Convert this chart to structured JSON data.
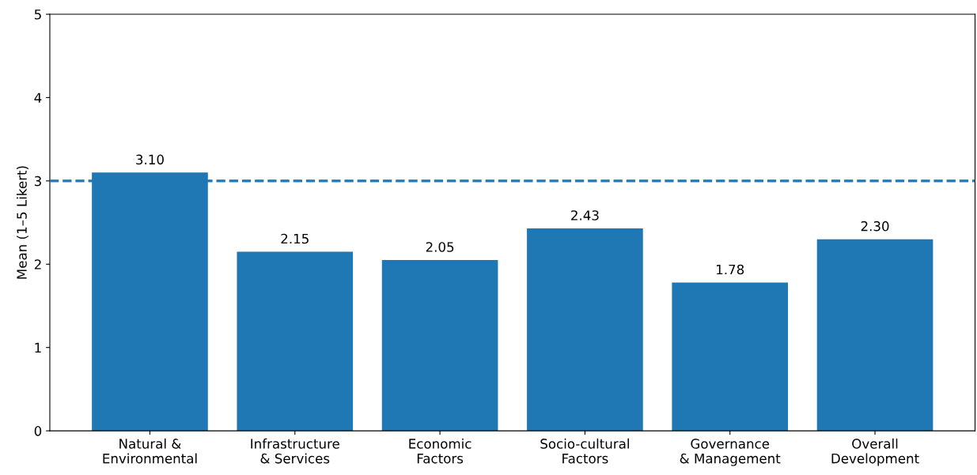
{
  "chart_data": {
    "type": "bar",
    "categories": [
      "Natural &\nEnvironmental",
      "Infrastructure\n& Services",
      "Economic\nFactors",
      "Socio-cultural\nFactors",
      "Governance\n& Management",
      "Overall\nDevelopment"
    ],
    "values": [
      3.1,
      2.15,
      2.05,
      2.43,
      1.78,
      2.3
    ],
    "value_labels": [
      "3.10",
      "2.15",
      "2.05",
      "2.43",
      "1.78",
      "2.30"
    ],
    "color": "#1f77b4",
    "ylabel": "Mean (1–5 Likert)",
    "ylim": [
      0,
      5
    ],
    "yticks": [
      0,
      1,
      2,
      3,
      4,
      5
    ],
    "ref_lines": [
      {
        "axis": "y",
        "value": 3,
        "label": null,
        "color": "#1f77b4",
        "line_style": "dashed"
      }
    ],
    "grid": false,
    "legend": false
  }
}
